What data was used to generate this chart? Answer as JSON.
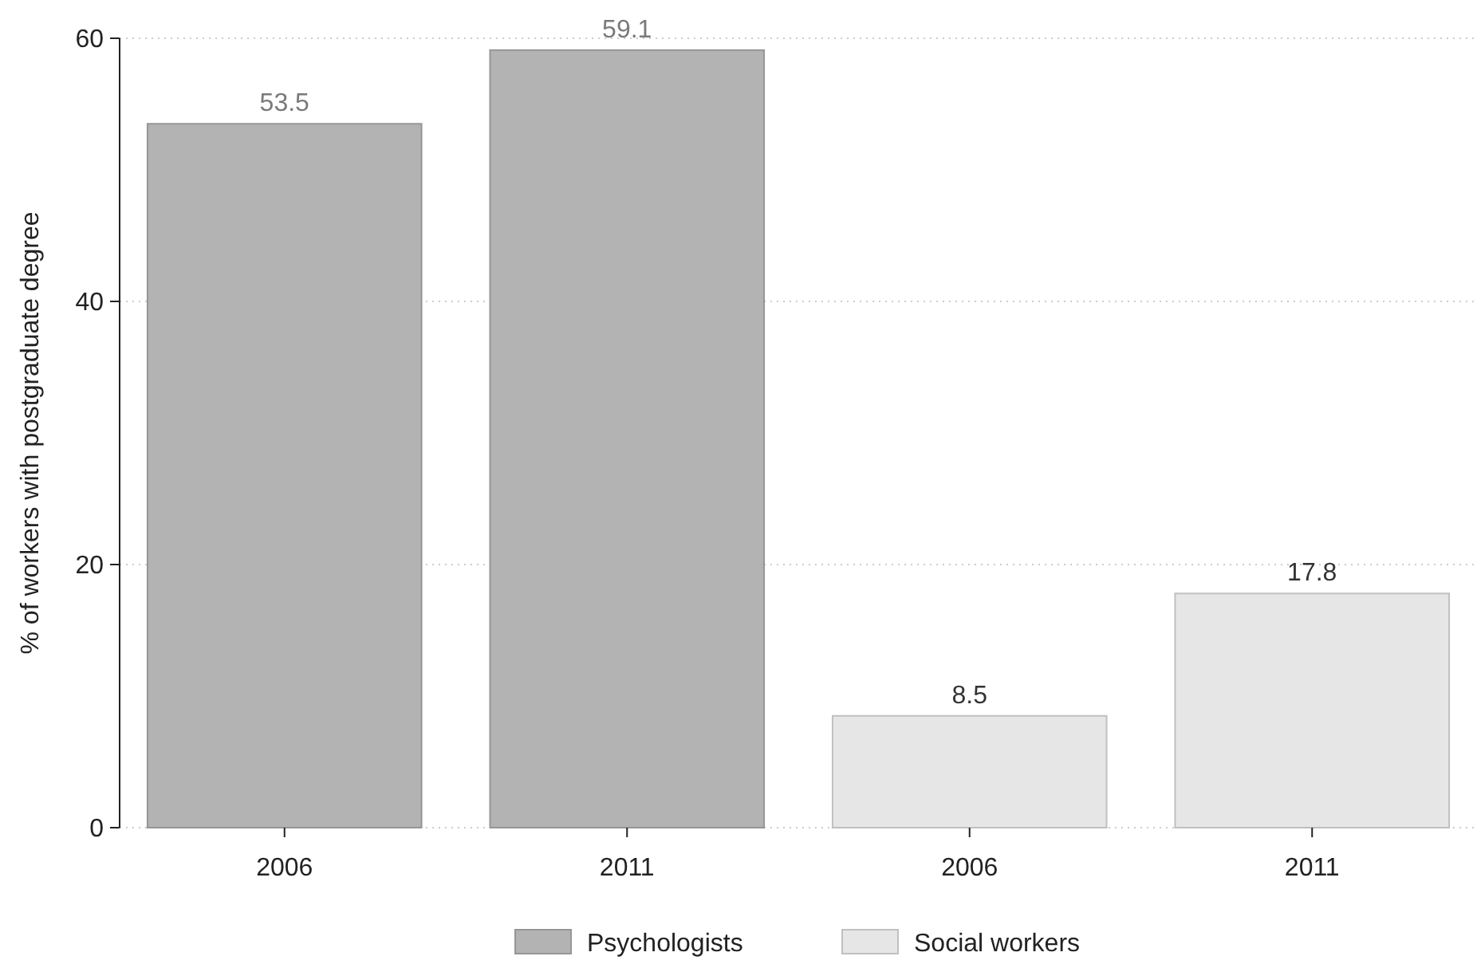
{
  "chart_data": {
    "type": "bar",
    "ylabel": "% of workers with postgraduate degree",
    "categories": [
      "2006",
      "2011",
      "2006",
      "2011"
    ],
    "series": [
      {
        "name": "Psychologists",
        "color": "#b3b3b3",
        "values": [
          53.5,
          59.1,
          null,
          null
        ]
      },
      {
        "name": "Social workers",
        "color": "#e6e6e6",
        "values": [
          null,
          null,
          8.5,
          17.8
        ]
      }
    ],
    "ylim": [
      0,
      60
    ],
    "yticks": [
      0,
      20,
      40,
      60
    ],
    "grid": "y",
    "legend": "bottom",
    "data_labels": true
  }
}
